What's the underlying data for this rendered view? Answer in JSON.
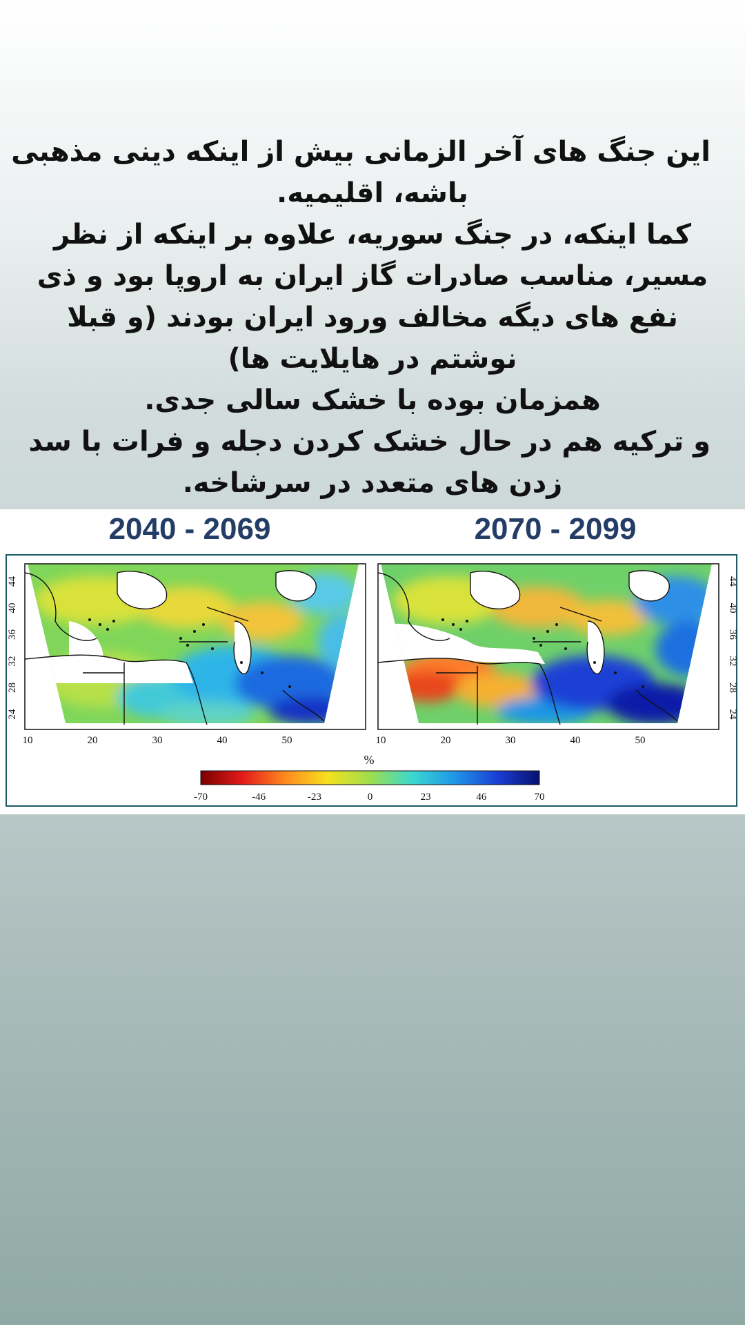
{
  "story": {
    "lines": [
      "این جنگ های آخر الزمانی بیش از اینکه دینی مذهبی",
      "باشه، اقلیمیه.",
      "کما اینکه، در جنگ سوریه، علاوه بر اینکه از نظر",
      "مسیر، مناسب صادرات گاز ایران به اروپا بود و ذی",
      "نفع های دیگه مخالف ورود ایران بودند (و قبلا",
      "نوشتم در هایلایت ها)",
      "همزمان بوده با خشک سالی جدی.",
      "و ترکیه هم در حال خشک کردن دجله و فرات با سد",
      "زدن های متعدد در سرشاخه."
    ]
  },
  "figure": {
    "left_period": "2040 - 2069",
    "right_period": "2070 - 2099",
    "x_ticks": [
      "10",
      "20",
      "30",
      "40",
      "50"
    ],
    "y_ticks": [
      "24",
      "28",
      "32",
      "36",
      "40",
      "44"
    ],
    "colorbar_unit": "%",
    "colorbar_ticks": [
      "-70",
      "-46",
      "-23",
      "0",
      "23",
      "46",
      "70"
    ],
    "colorbar_colors": [
      "#7a0000",
      "#e41a1a",
      "#ff8a1e",
      "#f5e11e",
      "#9ede4c",
      "#3ad8d0",
      "#1f96e6",
      "#1a3fd6",
      "#08106e"
    ]
  }
}
